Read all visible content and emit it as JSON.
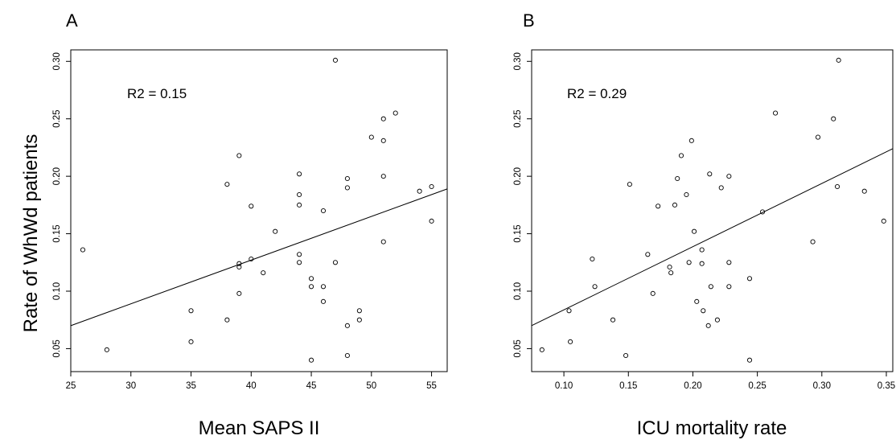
{
  "figure": {
    "ylabel": "Rate of WhWd patients"
  },
  "chart_data": [
    {
      "type": "scatter",
      "panel_label": "A",
      "title": "",
      "xlabel": "Mean SAPS II",
      "ylabel": "Rate of WhWd patients",
      "annotation": "R2 = 0.15",
      "xlim": [
        25,
        56.3
      ],
      "ylim": [
        0.03,
        0.31
      ],
      "xticks": [
        25,
        30,
        35,
        40,
        45,
        50,
        55
      ],
      "xtick_labels": [
        "25",
        "30",
        "35",
        "40",
        "45",
        "50",
        "55"
      ],
      "yticks": [
        0.05,
        0.1,
        0.15,
        0.2,
        0.25,
        0.3
      ],
      "ytick_labels": [
        "0.05",
        "0.10",
        "0.15",
        "0.20",
        "0.25",
        "0.30"
      ],
      "grid": false,
      "fit_line": [
        [
          25,
          0.07
        ],
        [
          56.3,
          0.189
        ]
      ],
      "points": [
        [
          26,
          0.136
        ],
        [
          28,
          0.049
        ],
        [
          35,
          0.083
        ],
        [
          35,
          0.056
        ],
        [
          38,
          0.193
        ],
        [
          38,
          0.075
        ],
        [
          39,
          0.218
        ],
        [
          39,
          0.124
        ],
        [
          39,
          0.121
        ],
        [
          39,
          0.098
        ],
        [
          40,
          0.174
        ],
        [
          40,
          0.128
        ],
        [
          41,
          0.116
        ],
        [
          42,
          0.152
        ],
        [
          44,
          0.202
        ],
        [
          44,
          0.184
        ],
        [
          44,
          0.175
        ],
        [
          44,
          0.132
        ],
        [
          44,
          0.125
        ],
        [
          45,
          0.111
        ],
        [
          45,
          0.104
        ],
        [
          45,
          0.04
        ],
        [
          46,
          0.17
        ],
        [
          46,
          0.104
        ],
        [
          46,
          0.091
        ],
        [
          47,
          0.301
        ],
        [
          47,
          0.125
        ],
        [
          48,
          0.198
        ],
        [
          48,
          0.19
        ],
        [
          48,
          0.07
        ],
        [
          48,
          0.044
        ],
        [
          49,
          0.083
        ],
        [
          49,
          0.075
        ],
        [
          50,
          0.234
        ],
        [
          51,
          0.25
        ],
        [
          51,
          0.231
        ],
        [
          51,
          0.2
        ],
        [
          51,
          0.143
        ],
        [
          52,
          0.255
        ],
        [
          54,
          0.187
        ],
        [
          55,
          0.191
        ],
        [
          55,
          0.161
        ]
      ]
    },
    {
      "type": "scatter",
      "panel_label": "B",
      "title": "",
      "xlabel": "ICU mortality rate",
      "ylabel": "Rate of WhWd patients",
      "annotation": "R2 = 0.29",
      "xlim": [
        0.075,
        0.355
      ],
      "ylim": [
        0.03,
        0.31
      ],
      "xticks": [
        0.1,
        0.15,
        0.2,
        0.25,
        0.3,
        0.35
      ],
      "xtick_labels": [
        "0.10",
        "0.15",
        "0.20",
        "0.25",
        "0.30",
        "0.35"
      ],
      "yticks": [
        0.05,
        0.1,
        0.15,
        0.2,
        0.25,
        0.3
      ],
      "ytick_labels": [
        "0.05",
        "0.10",
        "0.15",
        "0.20",
        "0.25",
        "0.30"
      ],
      "grid": false,
      "fit_line": [
        [
          0.075,
          0.07
        ],
        [
          0.355,
          0.224
        ]
      ],
      "points": [
        [
          0.083,
          0.049
        ],
        [
          0.104,
          0.083
        ],
        [
          0.105,
          0.056
        ],
        [
          0.122,
          0.128
        ],
        [
          0.124,
          0.104
        ],
        [
          0.138,
          0.075
        ],
        [
          0.148,
          0.044
        ],
        [
          0.151,
          0.193
        ],
        [
          0.165,
          0.132
        ],
        [
          0.169,
          0.098
        ],
        [
          0.173,
          0.174
        ],
        [
          0.182,
          0.121
        ],
        [
          0.183,
          0.116
        ],
        [
          0.186,
          0.175
        ],
        [
          0.188,
          0.198
        ],
        [
          0.191,
          0.218
        ],
        [
          0.195,
          0.184
        ],
        [
          0.197,
          0.125
        ],
        [
          0.199,
          0.231
        ],
        [
          0.201,
          0.152
        ],
        [
          0.203,
          0.091
        ],
        [
          0.207,
          0.136
        ],
        [
          0.207,
          0.124
        ],
        [
          0.208,
          0.083
        ],
        [
          0.212,
          0.07
        ],
        [
          0.213,
          0.202
        ],
        [
          0.214,
          0.104
        ],
        [
          0.219,
          0.075
        ],
        [
          0.222,
          0.19
        ],
        [
          0.228,
          0.2
        ],
        [
          0.228,
          0.125
        ],
        [
          0.228,
          0.104
        ],
        [
          0.244,
          0.111
        ],
        [
          0.244,
          0.04
        ],
        [
          0.254,
          0.169
        ],
        [
          0.264,
          0.255
        ],
        [
          0.293,
          0.143
        ],
        [
          0.297,
          0.234
        ],
        [
          0.309,
          0.25
        ],
        [
          0.312,
          0.191
        ],
        [
          0.313,
          0.301
        ],
        [
          0.333,
          0.187
        ],
        [
          0.348,
          0.161
        ]
      ]
    }
  ]
}
